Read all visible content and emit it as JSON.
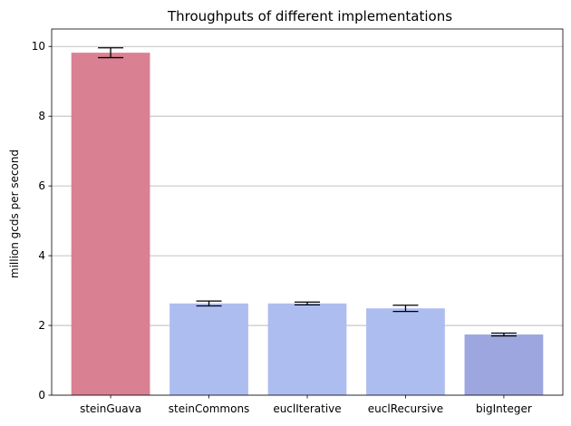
{
  "chart_data": {
    "type": "bar",
    "title": "Throughputs of different implementations",
    "xlabel": "",
    "ylabel": "million gcds per second",
    "categories": [
      "steinGuava",
      "steinCommons",
      "euclIterative",
      "euclRecursive",
      "bigInteger"
    ],
    "values": [
      9.82,
      2.63,
      2.63,
      2.49,
      1.74
    ],
    "errors": [
      0.14,
      0.07,
      0.04,
      0.09,
      0.04
    ],
    "colors": [
      "#d98092",
      "#aebdf0",
      "#aebdf0",
      "#aebdf0",
      "#9ea6e0"
    ],
    "ylim": [
      0,
      10.5
    ],
    "yticks": [
      0,
      2,
      4,
      6,
      8,
      10
    ],
    "grid": "horizontal"
  }
}
